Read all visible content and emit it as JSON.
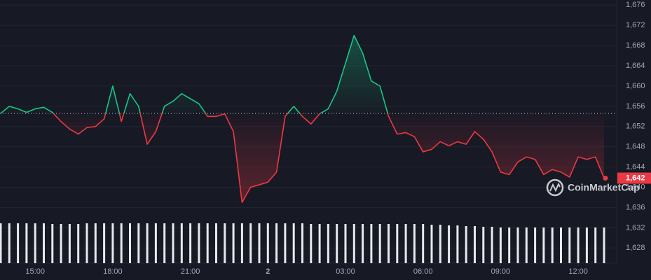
{
  "chart_data": {
    "type": "line",
    "categories": [
      "13:40",
      "14:00",
      "14:20",
      "14:40",
      "15:00",
      "15:20",
      "15:40",
      "16:00",
      "16:20",
      "16:40",
      "17:00",
      "17:20",
      "17:40",
      "18:00",
      "18:20",
      "18:40",
      "19:00",
      "19:20",
      "19:40",
      "20:00",
      "20:20",
      "20:40",
      "21:00",
      "21:20",
      "21:40",
      "22:00",
      "22:20",
      "22:40",
      "23:00",
      "23:20",
      "23:40",
      "00:00",
      "00:20",
      "00:40",
      "01:00",
      "01:20",
      "01:40",
      "02:00",
      "02:20",
      "02:40",
      "03:00",
      "03:20",
      "03:40",
      "04:00",
      "04:20",
      "04:40",
      "05:00",
      "05:20",
      "05:40",
      "06:00",
      "06:20",
      "06:40",
      "07:00",
      "07:20",
      "07:40",
      "08:00",
      "08:20",
      "08:40",
      "09:00",
      "09:20",
      "09:40",
      "10:00",
      "10:20",
      "10:40",
      "11:00",
      "11:20",
      "11:40",
      "12:00",
      "12:20",
      "12:40",
      "13:00"
    ],
    "values": [
      1654.6,
      1656,
      1655.5,
      1654.8,
      1655.5,
      1655.8,
      1654.8,
      1653,
      1651.5,
      1650.5,
      1651.8,
      1652,
      1653.5,
      1660,
      1653,
      1658.5,
      1656,
      1648.5,
      1651,
      1656,
      1657,
      1658.5,
      1657.5,
      1656.5,
      1654,
      1654,
      1654.5,
      1651,
      1637,
      1640,
      1640.5,
      1641,
      1643,
      1654,
      1656,
      1654,
      1652.5,
      1654.5,
      1655.5,
      1659,
      1664.5,
      1670,
      1666.5,
      1661,
      1660,
      1654,
      1650.5,
      1650.8,
      1650,
      1647,
      1647.5,
      1649,
      1648.2,
      1649,
      1648.5,
      1651,
      1649.5,
      1647,
      1643,
      1642.5,
      1645,
      1646,
      1645.5,
      1642.5,
      1643.5,
      1643,
      1642,
      1646,
      1645.5,
      1646,
      1641.8
    ],
    "volume": [
      57,
      57,
      57,
      57,
      57,
      57,
      56,
      56,
      56,
      56,
      57,
      57,
      57,
      57,
      57,
      57,
      57,
      57,
      57,
      57,
      57,
      57,
      57,
      57,
      57,
      57,
      57,
      57,
      57,
      57,
      57,
      57,
      57,
      57,
      57,
      57,
      56,
      56,
      56,
      56,
      56,
      56,
      56,
      56,
      56,
      56,
      56,
      56,
      56,
      56,
      55,
      55,
      54,
      54,
      53,
      53,
      52,
      52,
      51,
      51,
      51,
      51,
      51,
      51,
      51,
      51,
      51,
      51,
      51,
      51,
      51
    ],
    "baseline": 1654.6,
    "up_color": "#16c784",
    "down_color": "#ea3943",
    "current_price": {
      "value": 1641.8,
      "label": "1,642"
    },
    "watermark": "CoinMarketCap",
    "ylim": [
      1625,
      1677
    ],
    "yticks": [
      {
        "value": 1628,
        "label": "1,628"
      },
      {
        "value": 1632,
        "label": "1,632"
      },
      {
        "value": 1636,
        "label": "1,636"
      },
      {
        "value": 1640,
        "label": "1,640"
      },
      {
        "value": 1644,
        "label": "1,644"
      },
      {
        "value": 1648,
        "label": "1,648"
      },
      {
        "value": 1652,
        "label": "1,652"
      },
      {
        "value": 1656,
        "label": "1,656"
      },
      {
        "value": 1660,
        "label": "1,660"
      },
      {
        "value": 1664,
        "label": "1,664"
      },
      {
        "value": 1668,
        "label": "1,668"
      },
      {
        "value": 1672,
        "label": "1,672"
      },
      {
        "value": 1676,
        "label": "1,676"
      }
    ],
    "xticks": [
      "15:00",
      "18:00",
      "21:00",
      {
        "value": "00:00",
        "label": "2"
      },
      "03:00",
      "06:00",
      "09:00",
      "12:00"
    ],
    "grid": true
  }
}
